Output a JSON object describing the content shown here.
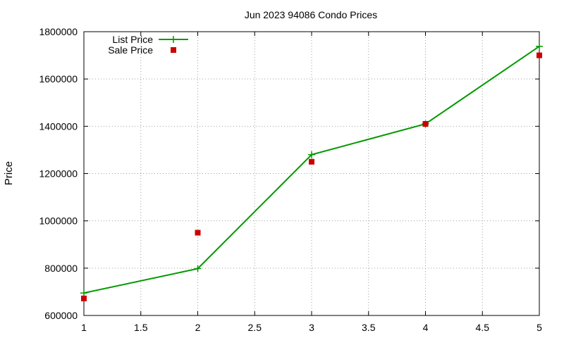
{
  "chart_data": {
    "type": "line",
    "title": "Jun 2023 94086 Condo Prices",
    "xlabel": "",
    "ylabel": "Price",
    "xlim": [
      1,
      5
    ],
    "ylim": [
      600000,
      1800000
    ],
    "x_ticks": [
      "1",
      "1.5",
      "2",
      "2.5",
      "3",
      "3.5",
      "4",
      "4.5",
      "5"
    ],
    "y_ticks": [
      "600000",
      "800000",
      "1000000",
      "1200000",
      "1400000",
      "1600000",
      "1800000"
    ],
    "grid": true,
    "legend_position": "top-left",
    "series": [
      {
        "name": "List Price",
        "style": "line+cross",
        "color": "#009900",
        "x": [
          1,
          2,
          3,
          4,
          5
        ],
        "y": [
          695000,
          798000,
          1280000,
          1410000,
          1738000
        ]
      },
      {
        "name": "Sale Price",
        "style": "square",
        "color": "#cc0000",
        "x": [
          1,
          2,
          3,
          4,
          5
        ],
        "y": [
          672000,
          950000,
          1250000,
          1410000,
          1700000
        ]
      }
    ]
  }
}
